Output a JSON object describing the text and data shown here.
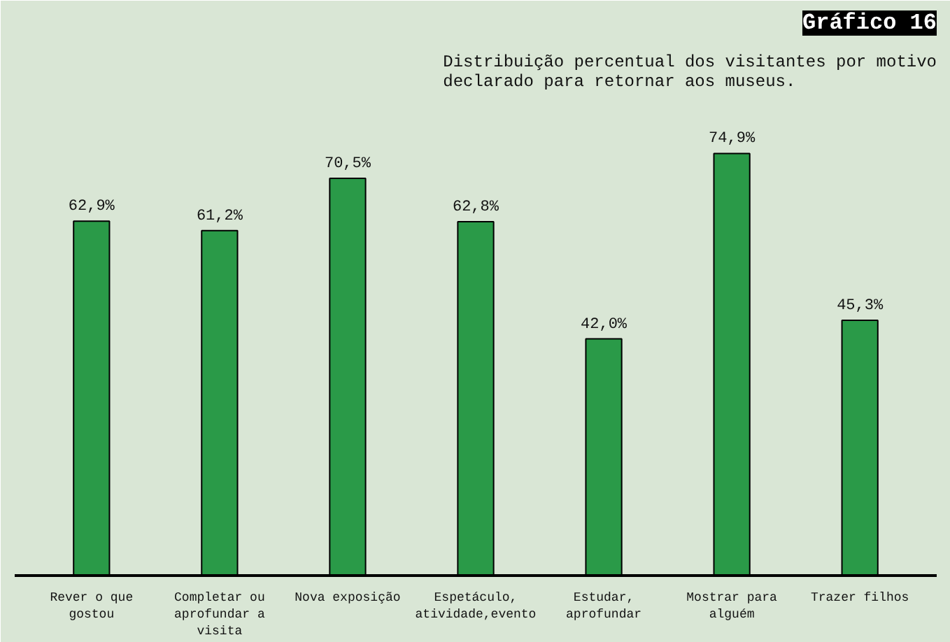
{
  "chart_data": {
    "type": "bar",
    "title": "Gráfico 16",
    "subtitle": "Distribuição percentual dos visitantes por motivo declarado para retornar aos museus.",
    "categories": [
      "Rever o que gostou",
      "Completar ou aprofundar a visita",
      "Nova exposição",
      "Espetáculo, atividade,evento",
      "Estudar, aprofundar",
      "Mostrar para alguém",
      "Trazer filhos"
    ],
    "values": [
      62.9,
      61.2,
      70.5,
      62.8,
      42.0,
      74.9,
      45.3
    ],
    "value_labels": [
      "62,9%",
      "61,2%",
      "70,5%",
      "62,8%",
      "42,0%",
      "74,9%",
      "45,3%"
    ],
    "color": "#2a9a48",
    "grid": false
  }
}
